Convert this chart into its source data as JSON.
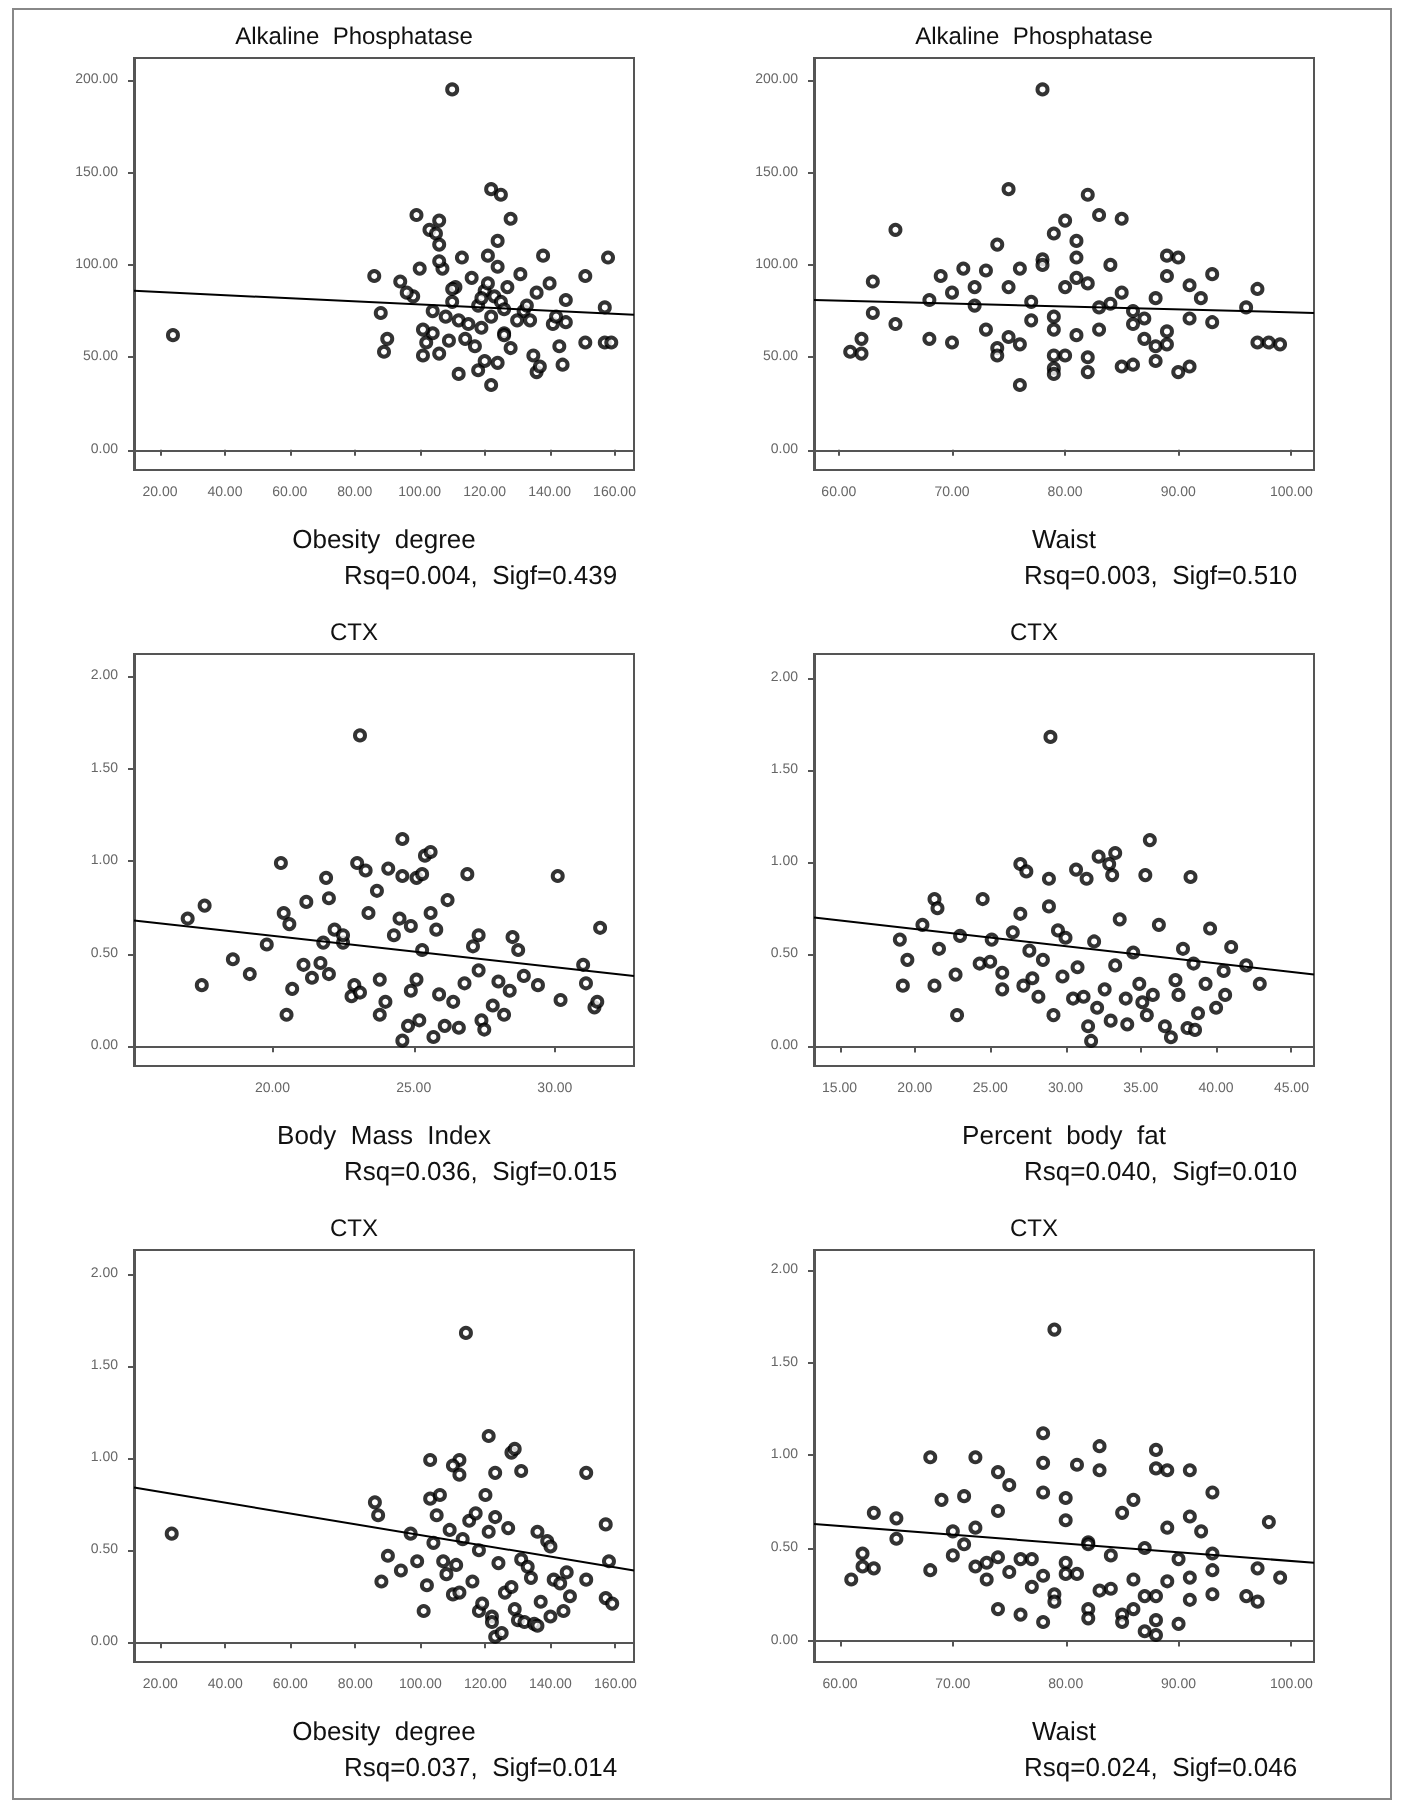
{
  "chart_data": [
    {
      "type": "scatter",
      "title": "Alkaline  Phosphatase",
      "xlabel": "Obesity  degree",
      "annotations": [
        "Rsq=0.004,  Sigf=0.439"
      ],
      "xlim": [
        12,
        166
      ],
      "ylim": [
        -11,
        212
      ],
      "xticks": [
        {
          "value": 20,
          "label": "20.00"
        },
        {
          "value": 40,
          "label": "40.00"
        },
        {
          "value": 60,
          "label": "60.00"
        },
        {
          "value": 80,
          "label": "80.00"
        },
        {
          "value": 100,
          "label": "100.00"
        },
        {
          "value": 120,
          "label": "120.00"
        },
        {
          "value": 140,
          "label": "140.00"
        },
        {
          "value": 160,
          "label": "160.00"
        }
      ],
      "yticks": [
        {
          "value": 0,
          "label": "0.00"
        },
        {
          "value": 50,
          "label": "50.00"
        },
        {
          "value": 100,
          "label": "100.00"
        },
        {
          "value": 150,
          "label": "150.00"
        },
        {
          "value": 200,
          "label": "200.00"
        }
      ],
      "series": [
        {
          "type": "scatter",
          "color": "#000000",
          "marker": "circle",
          "x": [
            110,
            24,
            122,
            125,
            99,
            106,
            128,
            103,
            105,
            106,
            124,
            121,
            113,
            138,
            158,
            86,
            151,
            94,
            107,
            106,
            116,
            131,
            140,
            145,
            136,
            100,
            111,
            120,
            123,
            125,
            127,
            118,
            132,
            104,
            108,
            112,
            115,
            119,
            122,
            126,
            130,
            134,
            141,
            145,
            88,
            90,
            89,
            101,
            102,
            104,
            106,
            112,
            118,
            120,
            122,
            124,
            126,
            135,
            136,
            137,
            143,
            144,
            151,
            157,
            159,
            157,
            98,
            110,
            114,
            117,
            128,
            101,
            109,
            119,
            126,
            133,
            142,
            96,
            121,
            124,
            110
          ],
          "values": [
            195,
            62,
            141,
            138,
            127,
            124,
            125,
            119,
            117,
            111,
            113,
            105,
            104,
            105,
            104,
            94,
            94,
            91,
            98,
            102,
            93,
            95,
            90,
            81,
            85,
            98,
            88,
            86,
            83,
            80,
            88,
            78,
            75,
            75,
            72,
            70,
            68,
            66,
            72,
            63,
            70,
            70,
            68,
            69,
            74,
            60,
            53,
            51,
            58,
            63,
            52,
            41,
            43,
            48,
            35,
            47,
            62,
            51,
            42,
            45,
            56,
            46,
            58,
            58,
            58,
            77,
            83,
            80,
            60,
            56,
            55,
            65,
            59,
            82,
            76,
            78,
            72,
            85,
            90,
            99,
            87
          ]
        },
        {
          "type": "line",
          "color": "#000000",
          "marker": "none",
          "x": [
            12,
            166
          ],
          "values": [
            86,
            73
          ]
        }
      ]
    },
    {
      "type": "scatter",
      "title": "Alkaline  Phosphatase",
      "xlabel": "Waist",
      "annotations": [
        "Rsq=0.003,  Sigf=0.510"
      ],
      "xlim": [
        57.8,
        102
      ],
      "ylim": [
        -11,
        212
      ],
      "xticks": [
        {
          "value": 60,
          "label": "60.00"
        },
        {
          "value": 70,
          "label": "70.00"
        },
        {
          "value": 80,
          "label": "80.00"
        },
        {
          "value": 90,
          "label": "90.00"
        },
        {
          "value": 100,
          "label": "100.00"
        }
      ],
      "yticks": [
        {
          "value": 0,
          "label": "0.00"
        },
        {
          "value": 50,
          "label": "50.00"
        },
        {
          "value": 100,
          "label": "100.00"
        },
        {
          "value": 150,
          "label": "150.00"
        },
        {
          "value": 200,
          "label": "200.00"
        }
      ],
      "series": [
        {
          "type": "scatter",
          "color": "#000000",
          "marker": "circle",
          "x": [
            78,
            75,
            82,
            83,
            85,
            80,
            65,
            79,
            74,
            81,
            63,
            61,
            62,
            62,
            63,
            65,
            68,
            68,
            69,
            70,
            70,
            71,
            72,
            73,
            72,
            73,
            74,
            74,
            75,
            76,
            76,
            76,
            77,
            77,
            78,
            78,
            79,
            79,
            79,
            79,
            80,
            80,
            81,
            81,
            81,
            82,
            82,
            82,
            83,
            84,
            84,
            85,
            85,
            86,
            86,
            87,
            88,
            88,
            88,
            89,
            89,
            89,
            89,
            90,
            90,
            91,
            91,
            91,
            92,
            93,
            93,
            96,
            97,
            97,
            98,
            99,
            75,
            79,
            83,
            86,
            87
          ],
          "values": [
            195,
            141,
            138,
            127,
            125,
            124,
            119,
            117,
            111,
            113,
            91,
            53,
            52,
            60,
            74,
            68,
            81,
            60,
            94,
            85,
            58,
            98,
            88,
            97,
            78,
            65,
            55,
            51,
            88,
            98,
            57,
            35,
            70,
            80,
            103,
            100,
            65,
            51,
            44,
            41,
            51,
            88,
            104,
            93,
            62,
            90,
            50,
            42,
            65,
            100,
            79,
            85,
            45,
            46,
            75,
            71,
            82,
            56,
            48,
            105,
            94,
            64,
            57,
            104,
            42,
            89,
            71,
            45,
            82,
            95,
            69,
            77,
            87,
            58,
            58,
            57,
            61,
            72,
            77,
            68,
            60
          ]
        },
        {
          "type": "line",
          "color": "#000000",
          "marker": "none",
          "x": [
            57.8,
            102
          ],
          "values": [
            81,
            74
          ]
        }
      ]
    },
    {
      "type": "scatter",
      "title": "CTX",
      "xlabel": "Body  Mass  Index",
      "annotations": [
        "Rsq=0.036,  Sigf=0.015"
      ],
      "xlim": [
        15.1,
        32.8
      ],
      "ylim": [
        -0.107,
        2.12
      ],
      "xticks": [
        {
          "value": 20,
          "label": "20.00"
        },
        {
          "value": 25,
          "label": "25.00"
        },
        {
          "value": 30,
          "label": "30.00"
        }
      ],
      "yticks": [
        {
          "value": 0,
          "label": "0.00"
        },
        {
          "value": 0.5,
          "label": "0.50"
        },
        {
          "value": 1,
          "label": "1.00"
        },
        {
          "value": 1.5,
          "label": "1.50"
        },
        {
          "value": 2,
          "label": "2.00"
        }
      ],
      "series": [
        {
          "type": "scatter",
          "color": "#000000",
          "marker": "circle",
          "x": [
            23.1,
            24.6,
            25.4,
            25.6,
            20.3,
            23.0,
            23.3,
            24.1,
            24.6,
            25.1,
            25.3,
            26.9,
            30.1,
            21.9,
            17.0,
            17.6,
            17.5,
            18.6,
            19.2,
            19.8,
            20.4,
            20.6,
            20.5,
            20.7,
            21.2,
            21.1,
            21.4,
            21.7,
            21.8,
            22.0,
            22.0,
            22.2,
            22.5,
            22.8,
            22.9,
            23.1,
            23.4,
            23.7,
            23.8,
            23.8,
            24.0,
            24.3,
            24.5,
            24.6,
            24.8,
            24.9,
            25.1,
            25.2,
            25.3,
            25.6,
            25.7,
            25.9,
            26.2,
            26.1,
            26.4,
            26.6,
            26.8,
            27.1,
            27.3,
            27.3,
            27.4,
            27.5,
            27.8,
            28.0,
            28.2,
            28.4,
            28.5,
            28.7,
            28.9,
            29.4,
            30.2,
            31.0,
            31.1,
            31.4,
            31.5,
            31.6,
            22.5,
            24.9,
            25.8
          ],
          "values": [
            1.68,
            1.12,
            1.03,
            1.05,
            0.99,
            0.99,
            0.95,
            0.96,
            0.92,
            0.91,
            0.93,
            0.93,
            0.92,
            0.91,
            0.69,
            0.76,
            0.33,
            0.47,
            0.39,
            0.55,
            0.72,
            0.66,
            0.17,
            0.31,
            0.78,
            0.44,
            0.37,
            0.45,
            0.56,
            0.8,
            0.39,
            0.63,
            0.56,
            0.27,
            0.33,
            0.29,
            0.72,
            0.84,
            0.36,
            0.17,
            0.24,
            0.6,
            0.69,
            0.03,
            0.11,
            0.3,
            0.36,
            0.14,
            0.52,
            0.72,
            0.05,
            0.28,
            0.79,
            0.11,
            0.24,
            0.1,
            0.34,
            0.54,
            0.6,
            0.41,
            0.14,
            0.09,
            0.22,
            0.35,
            0.17,
            0.3,
            0.59,
            0.52,
            0.38,
            0.33,
            0.25,
            0.44,
            0.34,
            0.21,
            0.24,
            0.64,
            0.6,
            0.65,
            0.63
          ]
        },
        {
          "type": "line",
          "color": "#000000",
          "marker": "none",
          "x": [
            15.1,
            32.8
          ],
          "values": [
            0.68,
            0.38
          ]
        }
      ]
    },
    {
      "type": "scatter",
      "title": "CTX",
      "xlabel": "Percent  body  fat",
      "annotations": [
        "Rsq=0.040,  Sigf=0.010"
      ],
      "xlim": [
        13.3,
        46.5
      ],
      "ylim": [
        -0.106,
        2.13
      ],
      "xticks": [
        {
          "value": 15,
          "label": "15.00"
        },
        {
          "value": 20,
          "label": "20.00"
        },
        {
          "value": 25,
          "label": "25.00"
        },
        {
          "value": 30,
          "label": "30.00"
        },
        {
          "value": 35,
          "label": "35.00"
        },
        {
          "value": 40,
          "label": "40.00"
        },
        {
          "value": 45,
          "label": "45.00"
        }
      ],
      "yticks": [
        {
          "value": 0,
          "label": "0.00"
        },
        {
          "value": 0.5,
          "label": "0.50"
        },
        {
          "value": 1,
          "label": "1.00"
        },
        {
          "value": 1.5,
          "label": "1.50"
        },
        {
          "value": 2,
          "label": "2.00"
        }
      ],
      "series": [
        {
          "type": "scatter",
          "color": "#000000",
          "marker": "circle",
          "x": [
            29,
            35.6,
            32.2,
            33.3,
            27.0,
            27.4,
            28.9,
            30.7,
            31.4,
            32.9,
            33.1,
            35.3,
            38.3,
            19.0,
            19.5,
            19.2,
            20.5,
            21.3,
            21.5,
            21.6,
            21.3,
            22.7,
            22.8,
            23.0,
            24.5,
            24.3,
            25.0,
            25.1,
            25.8,
            25.8,
            26.5,
            27.0,
            27.2,
            27.6,
            27.8,
            28.2,
            28.5,
            28.9,
            29.2,
            29.5,
            29.8,
            30.5,
            30.8,
            31.2,
            31.5,
            31.7,
            32.1,
            32.6,
            33.0,
            33.3,
            34.0,
            34.1,
            34.5,
            34.9,
            35.1,
            35.4,
            35.8,
            36.2,
            36.6,
            37.0,
            37.3,
            37.5,
            37.8,
            38.1,
            38.5,
            38.6,
            38.8,
            39.3,
            39.6,
            40.0,
            40.5,
            40.6,
            41.0,
            42.0,
            42.9,
            33.6,
            31.9,
            30.0
          ],
          "values": [
            1.68,
            1.12,
            1.03,
            1.05,
            0.99,
            0.95,
            0.91,
            0.96,
            0.91,
            0.99,
            0.93,
            0.93,
            0.92,
            0.58,
            0.47,
            0.33,
            0.66,
            0.8,
            0.75,
            0.53,
            0.33,
            0.39,
            0.17,
            0.6,
            0.8,
            0.45,
            0.46,
            0.58,
            0.4,
            0.31,
            0.62,
            0.72,
            0.33,
            0.52,
            0.37,
            0.27,
            0.47,
            0.76,
            0.17,
            0.63,
            0.38,
            0.26,
            0.43,
            0.27,
            0.11,
            0.03,
            0.21,
            0.31,
            0.14,
            0.44,
            0.26,
            0.12,
            0.51,
            0.34,
            0.24,
            0.17,
            0.28,
            0.66,
            0.11,
            0.05,
            0.36,
            0.28,
            0.53,
            0.1,
            0.45,
            0.09,
            0.18,
            0.34,
            0.64,
            0.21,
            0.41,
            0.28,
            0.54,
            0.44,
            0.34,
            0.69,
            0.57,
            0.59
          ]
        },
        {
          "type": "line",
          "color": "#000000",
          "marker": "none",
          "x": [
            13.3,
            46.5
          ],
          "values": [
            0.7,
            0.39
          ]
        }
      ]
    },
    {
      "type": "scatter",
      "title": "CTX",
      "xlabel": "Obesity  degree",
      "annotations": [
        "Rsq=0.037,  Sigf=0.014"
      ],
      "xlim": [
        11.9,
        165.7
      ],
      "ylim": [
        -0.107,
        2.13
      ],
      "xticks": [
        {
          "value": 20,
          "label": "20.00"
        },
        {
          "value": 40,
          "label": "40.00"
        },
        {
          "value": 60,
          "label": "60.00"
        },
        {
          "value": 80,
          "label": "80.00"
        },
        {
          "value": 100,
          "label": "100.00"
        },
        {
          "value": 120,
          "label": "120.00"
        },
        {
          "value": 140,
          "label": "140.00"
        },
        {
          "value": 160,
          "label": "160.00"
        }
      ],
      "yticks": [
        {
          "value": 0,
          "label": "0.00"
        },
        {
          "value": 0.5,
          "label": "0.50"
        },
        {
          "value": 1,
          "label": "1.00"
        },
        {
          "value": 1.5,
          "label": "1.50"
        },
        {
          "value": 2,
          "label": "2.00"
        }
      ],
      "series": [
        {
          "type": "scatter",
          "color": "#000000",
          "marker": "circle",
          "x": [
            23.5,
            114,
            121,
            128,
            129,
            103,
            112,
            110,
            112,
            123,
            131,
            151,
            86,
            87,
            88,
            90,
            94,
            97,
            99,
            101,
            102,
            103,
            104,
            105,
            106,
            107,
            108,
            109,
            110,
            111,
            112,
            113,
            115,
            116,
            117,
            118,
            119,
            120,
            121,
            122,
            122,
            123,
            124,
            125,
            126,
            127,
            128,
            129,
            130,
            131,
            132,
            133,
            134,
            135,
            136,
            136,
            137,
            139,
            140,
            140,
            141,
            143,
            144,
            145,
            146,
            151,
            157,
            157,
            158,
            159,
            123,
            118
          ],
          "values": [
            0.59,
            1.68,
            1.12,
            1.03,
            1.05,
            0.99,
            0.99,
            0.96,
            0.91,
            0.92,
            0.93,
            0.92,
            0.76,
            0.69,
            0.33,
            0.47,
            0.39,
            0.59,
            0.44,
            0.17,
            0.31,
            0.78,
            0.54,
            0.69,
            0.8,
            0.44,
            0.37,
            0.61,
            0.26,
            0.42,
            0.27,
            0.56,
            0.66,
            0.33,
            0.7,
            0.17,
            0.21,
            0.8,
            0.6,
            0.14,
            0.11,
            0.03,
            0.43,
            0.05,
            0.27,
            0.62,
            0.3,
            0.18,
            0.12,
            0.45,
            0.11,
            0.41,
            0.35,
            0.1,
            0.09,
            0.6,
            0.22,
            0.55,
            0.14,
            0.52,
            0.34,
            0.32,
            0.17,
            0.38,
            0.25,
            0.34,
            0.64,
            0.24,
            0.44,
            0.21,
            0.68,
            0.5
          ]
        },
        {
          "type": "line",
          "color": "#000000",
          "marker": "none",
          "x": [
            11.9,
            165.7
          ],
          "values": [
            0.84,
            0.39
          ]
        }
      ]
    },
    {
      "type": "scatter",
      "title": "CTX",
      "xlabel": "Waist",
      "annotations": [
        "Rsq=0.024,  Sigf=0.046"
      ],
      "xlim": [
        57.7,
        102
      ],
      "ylim": [
        -0.116,
        2.11
      ],
      "xticks": [
        {
          "value": 60,
          "label": "60.00"
        },
        {
          "value": 70,
          "label": "70.00"
        },
        {
          "value": 80,
          "label": "80.00"
        },
        {
          "value": 90,
          "label": "90.00"
        },
        {
          "value": 100,
          "label": "100.00"
        }
      ],
      "yticks": [
        {
          "value": 0,
          "label": "0.00"
        },
        {
          "value": 0.5,
          "label": "0.50"
        },
        {
          "value": 1,
          "label": "1.00"
        },
        {
          "value": 1.5,
          "label": "1.50"
        },
        {
          "value": 2,
          "label": "2.00"
        }
      ],
      "series": [
        {
          "type": "scatter",
          "color": "#000000",
          "marker": "circle",
          "x": [
            79,
            78,
            83,
            88,
            68,
            72,
            74,
            78,
            81,
            83,
            88,
            89,
            91,
            93,
            61,
            62,
            62,
            63,
            63,
            65,
            65,
            68,
            69,
            70,
            70,
            71,
            71,
            72,
            72,
            73,
            73,
            74,
            74,
            74,
            75,
            75,
            76,
            76,
            77,
            77,
            78,
            78,
            78,
            79,
            79,
            80,
            80,
            80,
            81,
            82,
            82,
            82,
            83,
            84,
            84,
            85,
            85,
            85,
            86,
            86,
            86,
            87,
            87,
            87,
            88,
            88,
            88,
            89,
            89,
            90,
            90,
            91,
            91,
            91,
            92,
            93,
            93,
            93,
            96,
            97,
            97,
            98,
            99,
            80,
            82
          ],
          "values": [
            1.68,
            1.12,
            1.05,
            1.03,
            0.99,
            0.99,
            0.91,
            0.96,
            0.95,
            0.92,
            0.93,
            0.92,
            0.92,
            0.8,
            0.33,
            0.47,
            0.4,
            0.39,
            0.69,
            0.66,
            0.55,
            0.38,
            0.76,
            0.59,
            0.46,
            0.78,
            0.52,
            0.61,
            0.4,
            0.33,
            0.42,
            0.7,
            0.45,
            0.17,
            0.84,
            0.37,
            0.44,
            0.14,
            0.29,
            0.44,
            0.8,
            0.35,
            0.1,
            0.25,
            0.21,
            0.77,
            0.42,
            0.36,
            0.36,
            0.53,
            0.17,
            0.12,
            0.27,
            0.46,
            0.28,
            0.69,
            0.14,
            0.1,
            0.76,
            0.33,
            0.17,
            0.5,
            0.24,
            0.05,
            0.24,
            0.11,
            0.03,
            0.61,
            0.32,
            0.44,
            0.09,
            0.67,
            0.34,
            0.22,
            0.59,
            0.47,
            0.38,
            0.25,
            0.24,
            0.39,
            0.21,
            0.64,
            0.34,
            0.65,
            0.52
          ]
        },
        {
          "type": "line",
          "color": "#000000",
          "marker": "none",
          "x": [
            57.7,
            102
          ],
          "values": [
            0.63,
            0.42
          ]
        }
      ]
    }
  ]
}
